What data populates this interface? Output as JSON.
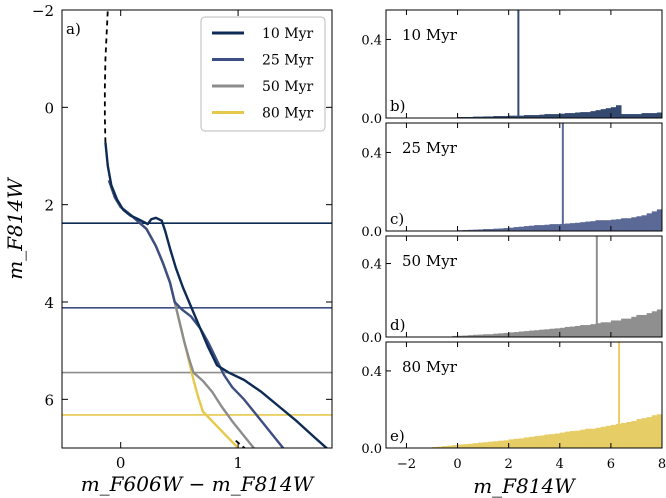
{
  "chart_data": [
    {
      "type": "line",
      "panel_label": "a)",
      "xlabel": "m_F606W − m_F814W",
      "ylabel": "m_F814W",
      "xlim": [
        -0.5,
        1.8
      ],
      "ylim": [
        7.0,
        -2.0
      ],
      "y_inverted": true,
      "xticks": [
        0,
        1
      ],
      "yticks": [
        -2,
        0,
        2,
        4,
        6
      ],
      "legend_position": "top-right",
      "series": [
        {
          "name": "10 Myr",
          "color": "#0d2b55",
          "turnoff_mag": 2.38,
          "points": [
            [
              -0.13,
              0.72
            ],
            [
              -0.11,
              1.2
            ],
            [
              -0.08,
              1.6
            ],
            [
              -0.03,
              1.9
            ],
            [
              0.02,
              2.1
            ],
            [
              0.08,
              2.22
            ],
            [
              0.15,
              2.3
            ],
            [
              0.2,
              2.36
            ],
            [
              0.23,
              2.4
            ],
            [
              0.26,
              2.3
            ],
            [
              0.3,
              2.27
            ],
            [
              0.35,
              2.33
            ],
            [
              0.38,
              2.55
            ],
            [
              0.42,
              2.9
            ],
            [
              0.47,
              3.3
            ],
            [
              0.53,
              3.7
            ],
            [
              0.6,
              4.1
            ],
            [
              0.67,
              4.5
            ],
            [
              0.74,
              4.9
            ],
            [
              0.82,
              5.3
            ],
            [
              0.92,
              5.45
            ],
            [
              1.05,
              5.6
            ],
            [
              1.2,
              5.85
            ],
            [
              1.35,
              6.15
            ],
            [
              1.5,
              6.45
            ],
            [
              1.65,
              6.78
            ],
            [
              1.8,
              7.1
            ]
          ]
        },
        {
          "name": "25 Myr",
          "color": "#3d4f82",
          "turnoff_mag": 4.12,
          "points": [
            [
              -0.1,
              1.5
            ],
            [
              -0.05,
              1.85
            ],
            [
              0.0,
              2.05
            ],
            [
              0.08,
              2.2
            ],
            [
              0.15,
              2.35
            ],
            [
              0.22,
              2.5
            ],
            [
              0.3,
              2.85
            ],
            [
              0.36,
              3.2
            ],
            [
              0.42,
              3.6
            ],
            [
              0.46,
              4.0
            ],
            [
              0.52,
              4.15
            ],
            [
              0.6,
              4.3
            ],
            [
              0.68,
              4.55
            ],
            [
              0.75,
              4.85
            ],
            [
              0.82,
              5.2
            ],
            [
              0.88,
              5.5
            ],
            [
              0.95,
              5.75
            ],
            [
              1.05,
              6.0
            ],
            [
              1.15,
              6.3
            ],
            [
              1.25,
              6.6
            ],
            [
              1.35,
              6.9
            ],
            [
              1.4,
              7.05
            ]
          ]
        },
        {
          "name": "50 Myr",
          "color": "#8c8c8c",
          "turnoff_mag": 5.45,
          "points": [
            [
              -0.1,
              1.5
            ],
            [
              -0.05,
              1.85
            ],
            [
              0.0,
              2.05
            ],
            [
              0.08,
              2.2
            ],
            [
              0.15,
              2.35
            ],
            [
              0.22,
              2.5
            ],
            [
              0.3,
              2.85
            ],
            [
              0.36,
              3.2
            ],
            [
              0.42,
              3.6
            ],
            [
              0.46,
              4.0
            ],
            [
              0.5,
              4.4
            ],
            [
              0.54,
              4.8
            ],
            [
              0.58,
              5.15
            ],
            [
              0.62,
              5.45
            ],
            [
              0.7,
              5.62
            ],
            [
              0.78,
              5.85
            ],
            [
              0.86,
              6.15
            ],
            [
              0.95,
              6.45
            ],
            [
              1.05,
              6.75
            ],
            [
              1.15,
              7.05
            ]
          ]
        },
        {
          "name": "80 Myr",
          "color": "#e6c94c",
          "turnoff_mag": 6.32,
          "points": [
            [
              -0.1,
              1.5
            ],
            [
              -0.05,
              1.85
            ],
            [
              0.0,
              2.05
            ],
            [
              0.08,
              2.2
            ],
            [
              0.15,
              2.35
            ],
            [
              0.22,
              2.5
            ],
            [
              0.3,
              2.85
            ],
            [
              0.36,
              3.2
            ],
            [
              0.42,
              3.6
            ],
            [
              0.46,
              4.0
            ],
            [
              0.5,
              4.4
            ],
            [
              0.54,
              4.8
            ],
            [
              0.58,
              5.2
            ],
            [
              0.62,
              5.6
            ],
            [
              0.66,
              5.95
            ],
            [
              0.7,
              6.25
            ],
            [
              0.78,
              6.45
            ],
            [
              0.88,
              6.7
            ],
            [
              0.98,
              6.95
            ],
            [
              1.02,
              7.05
            ]
          ]
        }
      ],
      "extension_line": {
        "style": "dashed",
        "color": "#000000",
        "upper_points": [
          [
            -0.13,
            0.72
          ],
          [
            -0.135,
            0.2
          ],
          [
            -0.135,
            -0.4
          ],
          [
            -0.13,
            -1.0
          ],
          [
            -0.12,
            -1.5
          ],
          [
            -0.11,
            -2.0
          ]
        ],
        "lower_points": [
          [
            0.98,
            6.85
          ],
          [
            1.03,
            6.95
          ],
          [
            1.08,
            7.05
          ]
        ]
      }
    },
    {
      "type": "bar",
      "panel_label": "b)",
      "age_label": "10 Myr",
      "color": "#34496f",
      "line_value": 2.38,
      "ylim": [
        0.0,
        0.55
      ],
      "yticks": [
        0.0,
        0.4
      ],
      "xlim": [
        -2.8,
        8.0
      ],
      "bin_width": 0.2,
      "x_start": -2.8,
      "values": [
        0,
        0,
        0,
        0,
        0,
        0,
        0,
        0,
        0,
        0,
        0,
        0,
        0,
        0,
        0.005,
        0.005,
        0.005,
        0.007,
        0.007,
        0.008,
        0.008,
        0.01,
        0.01,
        0.01,
        0.012,
        0.012,
        0.012,
        0.015,
        0.015,
        0.015,
        0.017,
        0.02,
        0.02,
        0.02,
        0.022,
        0.025,
        0.025,
        0.028,
        0.03,
        0.03,
        0.035,
        0.04,
        0.045,
        0.05,
        0.055,
        0.065,
        0.02,
        0.02,
        0.02,
        0.02,
        0.025,
        0.025,
        0.025,
        0.028,
        0.03,
        0.03,
        0.035,
        0.04,
        0.05,
        0.06,
        0.07,
        0.08,
        0.09,
        0.11,
        0.12,
        0.14,
        0.16,
        0.18,
        0.2,
        0.23,
        0.27,
        0.3,
        0.33,
        0.36,
        0.39,
        0.41,
        0.42,
        0.43,
        0.45,
        0.46,
        0.47,
        0.48,
        0.5,
        0.52,
        0.53,
        0.54,
        0.55
      ]
    },
    {
      "type": "bar",
      "panel_label": "c)",
      "age_label": "25 Myr",
      "color": "#5b6996",
      "line_value": 4.12,
      "ylim": [
        0.0,
        0.55
      ],
      "yticks": [
        0.0,
        0.4
      ],
      "xlim": [
        -2.8,
        8.0
      ],
      "bin_width": 0.2,
      "x_start": -2.8,
      "values": [
        0,
        0,
        0,
        0,
        0,
        0,
        0,
        0,
        0,
        0,
        0,
        0,
        0,
        0,
        0.004,
        0.005,
        0.006,
        0.007,
        0.008,
        0.01,
        0.01,
        0.012,
        0.013,
        0.015,
        0.017,
        0.02,
        0.022,
        0.025,
        0.027,
        0.03,
        0.03,
        0.032,
        0.035,
        0.035,
        0.036,
        0.038,
        0.04,
        0.042,
        0.045,
        0.048,
        0.05,
        0.055,
        0.055,
        0.055,
        0.058,
        0.06,
        0.065,
        0.065,
        0.07,
        0.075,
        0.08,
        0.09,
        0.1,
        0.11,
        0.13,
        0.15,
        0.04,
        0.04,
        0.05,
        0.055,
        0.06,
        0.07,
        0.08,
        0.09,
        0.1,
        0.12,
        0.14,
        0.16,
        0.18,
        0.22,
        0.24,
        0.28,
        0.3,
        0.33,
        0.36,
        0.4,
        0.44,
        0.47,
        0.5,
        0.52,
        0.55
      ]
    },
    {
      "type": "bar",
      "panel_label": "d)",
      "age_label": "50 Myr",
      "color": "#8f8f8f",
      "line_value": 5.45,
      "ylim": [
        0.0,
        0.55
      ],
      "yticks": [
        0.0,
        0.4
      ],
      "xlim": [
        -2.8,
        8.0
      ],
      "bin_width": 0.2,
      "x_start": -2.8,
      "values": [
        0,
        0,
        0,
        0,
        0,
        0,
        0,
        0,
        0,
        0,
        0,
        0,
        0,
        0.006,
        0.007,
        0.008,
        0.01,
        0.012,
        0.013,
        0.015,
        0.015,
        0.018,
        0.02,
        0.022,
        0.025,
        0.027,
        0.03,
        0.032,
        0.035,
        0.037,
        0.04,
        0.042,
        0.045,
        0.047,
        0.05,
        0.055,
        0.057,
        0.06,
        0.065,
        0.065,
        0.07,
        0.075,
        0.08,
        0.08,
        0.09,
        0.09,
        0.1,
        0.1,
        0.11,
        0.12,
        0.12,
        0.13,
        0.14,
        0.15,
        0.16,
        0.17,
        0.18,
        0.2,
        0.22,
        0.24,
        0.26,
        0.28,
        0.3,
        0.33,
        0.12,
        0.1,
        0.1,
        0.11,
        0.12,
        0.13,
        0.14,
        0.16,
        0.18,
        0.2,
        0.22,
        0.25,
        0.27,
        0.3,
        0.34,
        0.38,
        0.42,
        0.46,
        0.5,
        0.53
      ]
    },
    {
      "type": "bar",
      "panel_label": "e)",
      "age_label": "80 Myr",
      "color": "#e6cd66",
      "line_value": 6.32,
      "ylim": [
        0.0,
        0.55
      ],
      "yticks": [
        0.0,
        0.4
      ],
      "xlim": [
        -2.8,
        8.0
      ],
      "bin_width": 0.2,
      "x_start": -2.8,
      "values": [
        0,
        0,
        0,
        0,
        0,
        0,
        0,
        0,
        0,
        0.005,
        0.007,
        0.01,
        0.012,
        0.015,
        0.018,
        0.02,
        0.022,
        0.025,
        0.028,
        0.03,
        0.033,
        0.035,
        0.038,
        0.04,
        0.045,
        0.048,
        0.05,
        0.055,
        0.058,
        0.062,
        0.065,
        0.07,
        0.072,
        0.075,
        0.08,
        0.085,
        0.088,
        0.09,
        0.095,
        0.1,
        0.1,
        0.105,
        0.11,
        0.115,
        0.12,
        0.125,
        0.13,
        0.135,
        0.14,
        0.15,
        0.155,
        0.16,
        0.17,
        0.175,
        0.18,
        0.19,
        0.2,
        0.21,
        0.22,
        0.23,
        0.24,
        0.26,
        0.28,
        0.3,
        0.33,
        0.36,
        0.4,
        0.45,
        0.22,
        0.2,
        0.18,
        0.17,
        0.16,
        0.17,
        0.18,
        0.2,
        0.22,
        0.25,
        0.28,
        0.32,
        0.36,
        0.42,
        0.5
      ]
    }
  ]
}
